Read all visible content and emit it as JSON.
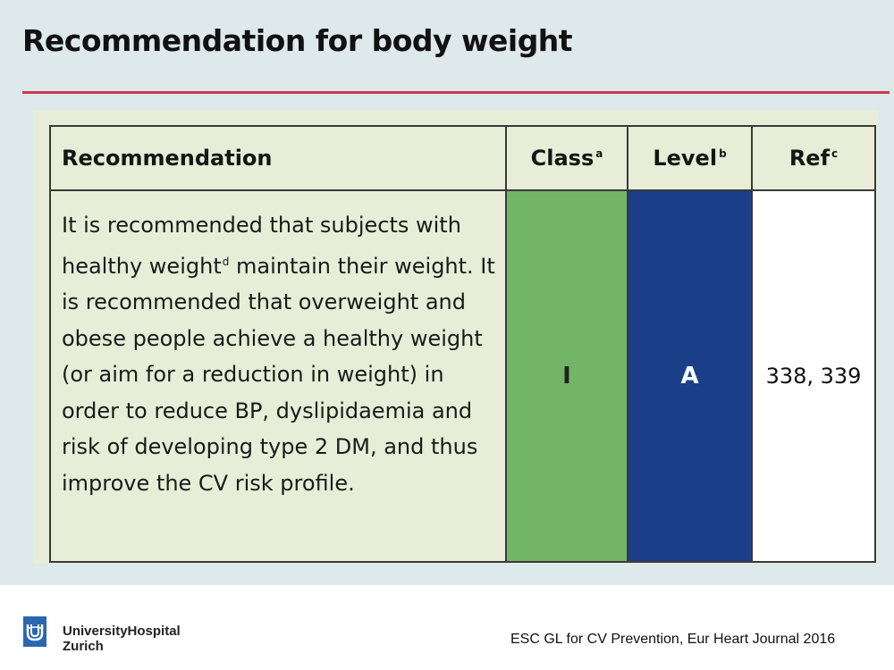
{
  "slide": {
    "title": "Recommendation for body weight"
  },
  "table": {
    "headers": {
      "recommendation": "Recommendation",
      "class": "Class",
      "class_footnote": "a",
      "level": "Level",
      "level_footnote": "b",
      "ref": "Ref",
      "ref_footnote": "c"
    },
    "row": {
      "text_part1": "It is recommended that subjects with healthy weight",
      "text_footnote": "d",
      "text_part2": " maintain their weight. It is recommended that overweight and obese people achieve a healthy weight (or aim for a reduction in weight) in order to reduce BP, dyslipidaemia and risk of developing type 2 DM, and thus improve the CV risk profile.",
      "class": "I",
      "level": "A",
      "ref": "338, 339"
    },
    "colors": {
      "class_cell": "#72b566",
      "level_cell": "#1a3f88",
      "panel": "#e8edd7"
    }
  },
  "footer": {
    "institution_line1": "UniversityHospital",
    "institution_line2": "Zurich",
    "source": "ESC GL for CV Prevention, Eur Heart Journal 2016",
    "logo_icon": "usz-logo-icon"
  }
}
